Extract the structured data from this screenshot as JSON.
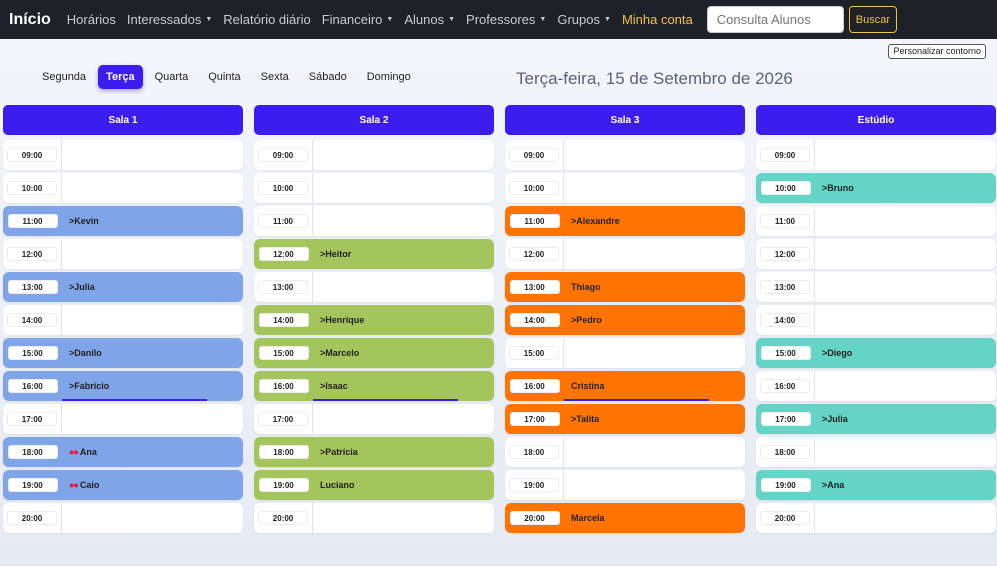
{
  "navbar": {
    "brand": "Início",
    "links": [
      {
        "label": "Horários",
        "dropdown": false,
        "highlight": false
      },
      {
        "label": "Interessados",
        "dropdown": true,
        "highlight": false
      },
      {
        "label": "Relatório diário",
        "dropdown": false,
        "highlight": false
      },
      {
        "label": "Financeiro",
        "dropdown": true,
        "highlight": false
      },
      {
        "label": "Alunos",
        "dropdown": true,
        "highlight": false
      },
      {
        "label": "Professores",
        "dropdown": true,
        "highlight": false
      },
      {
        "label": "Grupos",
        "dropdown": true,
        "highlight": false
      },
      {
        "label": "Minha conta",
        "dropdown": false,
        "highlight": true
      }
    ],
    "search_placeholder": "Consulta Alunos",
    "search_button": "Buscar"
  },
  "customize_button": "Personalizar contorno",
  "day_tabs": [
    "Segunda",
    "Terça",
    "Quarta",
    "Quinta",
    "Sexta",
    "Sábado",
    "Domingo"
  ],
  "active_day": "Terça",
  "date_title": "Terça-feira, 15 de Setembro de 2026",
  "colors": {
    "accent": "#3d1cf0",
    "sala1": "#7fa4e8",
    "sala2": "#a4c55b",
    "sala3": "#ff7400",
    "estudio": "#63d4c6",
    "dot": "#e8143c",
    "highlight": "#f1c243"
  },
  "rooms": [
    {
      "name": "Sala 1",
      "color": "#7fa4e8",
      "slots": [
        {
          "time": "09:00",
          "name": "",
          "prefix": ""
        },
        {
          "time": "10:00",
          "name": "",
          "prefix": ""
        },
        {
          "time": "11:00",
          "name": "Kevin",
          "prefix": ">"
        },
        {
          "time": "12:00",
          "name": "",
          "prefix": ""
        },
        {
          "time": "13:00",
          "name": "Julia",
          "prefix": ">"
        },
        {
          "time": "14:00",
          "name": "",
          "prefix": ""
        },
        {
          "time": "15:00",
          "name": "Danilo",
          "prefix": ">"
        },
        {
          "time": "16:00",
          "name": "Fabrício",
          "prefix": ">",
          "progress": true
        },
        {
          "time": "17:00",
          "name": "",
          "prefix": ""
        },
        {
          "time": "18:00",
          "name": "Ana",
          "prefix": "dots"
        },
        {
          "time": "19:00",
          "name": "Caio",
          "prefix": "dots"
        },
        {
          "time": "20:00",
          "name": "",
          "prefix": ""
        }
      ]
    },
    {
      "name": "Sala 2",
      "color": "#a4c55b",
      "slots": [
        {
          "time": "09:00",
          "name": "",
          "prefix": ""
        },
        {
          "time": "10:00",
          "name": "",
          "prefix": ""
        },
        {
          "time": "11:00",
          "name": "",
          "prefix": ""
        },
        {
          "time": "12:00",
          "name": "Heitor",
          "prefix": ">"
        },
        {
          "time": "13:00",
          "name": "",
          "prefix": ""
        },
        {
          "time": "14:00",
          "name": "Henrique",
          "prefix": ">"
        },
        {
          "time": "15:00",
          "name": "Marcelo",
          "prefix": ">"
        },
        {
          "time": "16:00",
          "name": "Isaac",
          "prefix": ">",
          "progress": true
        },
        {
          "time": "17:00",
          "name": "",
          "prefix": ""
        },
        {
          "time": "18:00",
          "name": "Patrícia",
          "prefix": ">"
        },
        {
          "time": "19:00",
          "name": "Luciano",
          "prefix": ""
        },
        {
          "time": "20:00",
          "name": "",
          "prefix": ""
        }
      ]
    },
    {
      "name": "Sala 3",
      "color": "#ff7400",
      "slots": [
        {
          "time": "09:00",
          "name": "",
          "prefix": ""
        },
        {
          "time": "10:00",
          "name": "",
          "prefix": ""
        },
        {
          "time": "11:00",
          "name": "Alexandre",
          "prefix": ">"
        },
        {
          "time": "12:00",
          "name": "",
          "prefix": ""
        },
        {
          "time": "13:00",
          "name": "Thiago",
          "prefix": ""
        },
        {
          "time": "14:00",
          "name": "Pedro",
          "prefix": ">"
        },
        {
          "time": "15:00",
          "name": "",
          "prefix": ""
        },
        {
          "time": "16:00",
          "name": "Cristina",
          "prefix": "",
          "progress": true
        },
        {
          "time": "17:00",
          "name": "Talita",
          "prefix": ">"
        },
        {
          "time": "18:00",
          "name": "",
          "prefix": ""
        },
        {
          "time": "19:00",
          "name": "",
          "prefix": ""
        },
        {
          "time": "20:00",
          "name": "Marcela",
          "prefix": ""
        }
      ]
    },
    {
      "name": "Estúdio",
      "color": "#63d4c6",
      "slots": [
        {
          "time": "09:00",
          "name": "",
          "prefix": ""
        },
        {
          "time": "10:00",
          "name": "Bruno",
          "prefix": ">"
        },
        {
          "time": "11:00",
          "name": "",
          "prefix": ""
        },
        {
          "time": "12:00",
          "name": "",
          "prefix": ""
        },
        {
          "time": "13:00",
          "name": "",
          "prefix": ""
        },
        {
          "time": "14:00",
          "name": "",
          "prefix": ""
        },
        {
          "time": "15:00",
          "name": "Diego",
          "prefix": ">"
        },
        {
          "time": "16:00",
          "name": "",
          "prefix": ""
        },
        {
          "time": "17:00",
          "name": "Julia",
          "prefix": ">"
        },
        {
          "time": "18:00",
          "name": "",
          "prefix": ""
        },
        {
          "time": "19:00",
          "name": "Ana",
          "prefix": ">"
        },
        {
          "time": "20:00",
          "name": "",
          "prefix": ""
        }
      ]
    }
  ]
}
